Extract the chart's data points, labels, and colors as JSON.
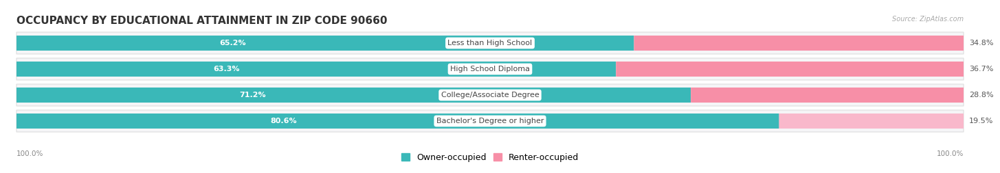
{
  "title": "OCCUPANCY BY EDUCATIONAL ATTAINMENT IN ZIP CODE 90660",
  "source": "Source: ZipAtlas.com",
  "categories": [
    "Less than High School",
    "High School Diploma",
    "College/Associate Degree",
    "Bachelor's Degree or higher"
  ],
  "owner_pct": [
    65.2,
    63.3,
    71.2,
    80.6
  ],
  "renter_pct": [
    34.8,
    36.7,
    28.8,
    19.5
  ],
  "owner_color": "#3ab8b8",
  "renter_color": "#f78fa7",
  "renter_color_light": "#f9b8cb",
  "bg_color": "#ffffff",
  "pill_color": "#f0f0f0",
  "pill_border_color": "#e0e0e0",
  "title_fontsize": 11,
  "label_fontsize": 8,
  "pct_fontsize": 8,
  "legend_fontsize": 9,
  "axis_label_left": "100.0%",
  "axis_label_right": "100.0%"
}
